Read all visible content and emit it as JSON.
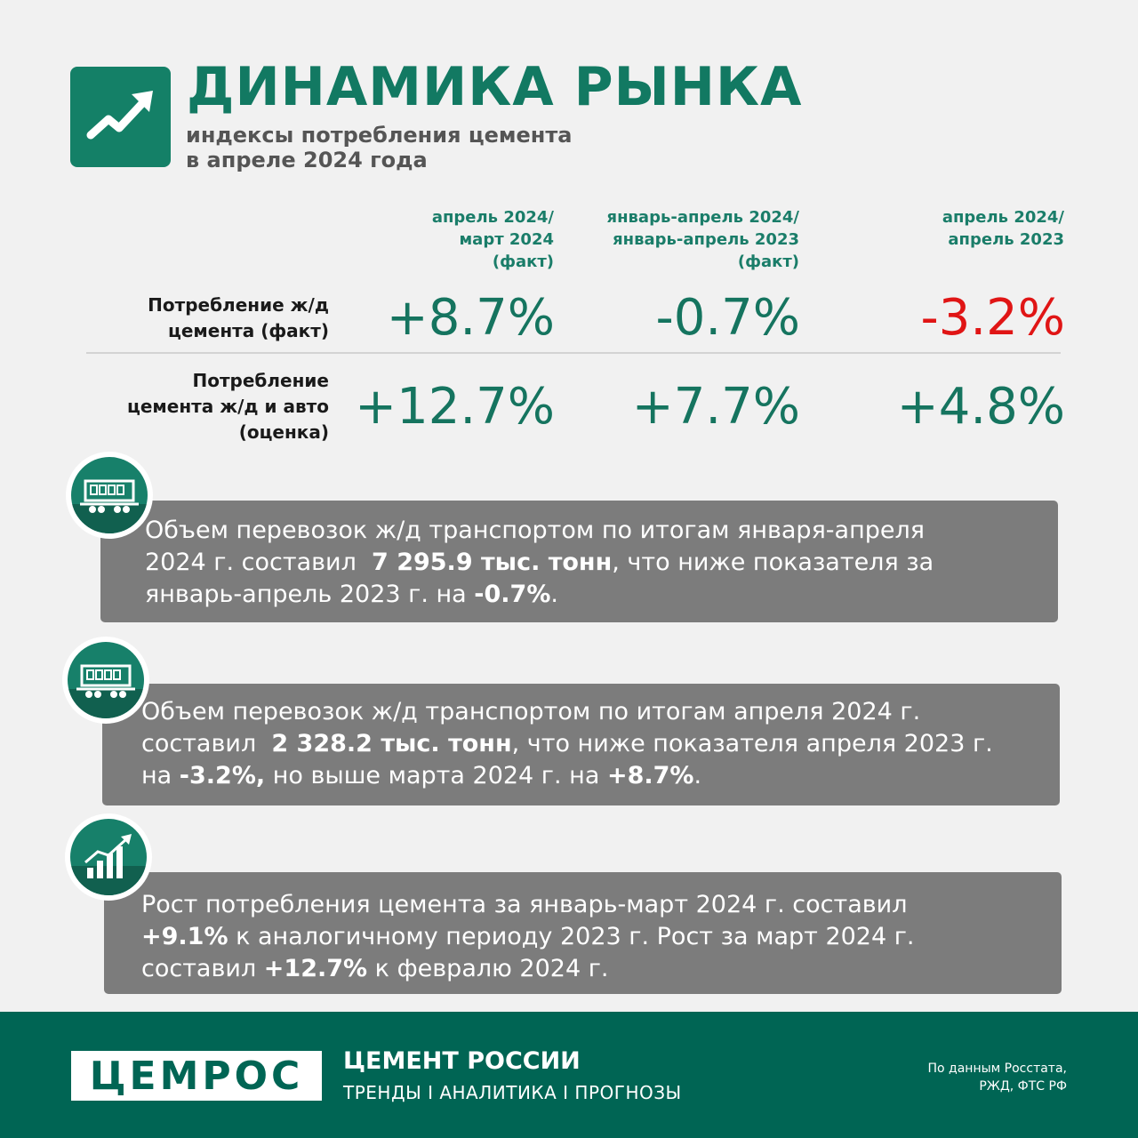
{
  "header": {
    "title": "ДИНАМИКА РЫНКА",
    "subtitle_line1": "индексы потребления цемента",
    "subtitle_line2": "в апреле 2024 года",
    "logo_icon": "trend-up-arrow-icon"
  },
  "table": {
    "columns": [
      {
        "lines": [
          "апрель 2024/",
          "март 2024",
          "(факт)"
        ]
      },
      {
        "lines": [
          "январь-апрель 2024/",
          "январь-апрель 2023",
          "(факт)"
        ]
      },
      {
        "lines": [
          "апрель 2024/",
          "апрель 2023"
        ]
      }
    ],
    "rows": [
      {
        "label_lines": [
          "Потребление ж/д",
          "цемента (факт)"
        ],
        "values": [
          "+8.7%",
          "-0.7%",
          "-3.2%"
        ]
      },
      {
        "label_lines": [
          "Потребление",
          "цемента ж/д и авто",
          "(оценка)"
        ],
        "values": [
          "+12.7%",
          "+7.7%",
          "+4.8%"
        ]
      }
    ],
    "colors": {
      "positive": "#15745f",
      "negative": "#e01515"
    }
  },
  "info": [
    {
      "icon": "railcar-icon",
      "segments": [
        {
          "text": "Объем перевозок ж/д транспортом по итогам января-апреля",
          "bold": false,
          "br": true
        },
        {
          "text": "2024 г. составил  ",
          "bold": false
        },
        {
          "text": "7 295.9 тыс. тонн",
          "bold": true
        },
        {
          "text": ", что ниже показателя за",
          "bold": false,
          "br": true
        },
        {
          "text": "январь-апрель 2023 г. на ",
          "bold": false
        },
        {
          "text": "-0.7%",
          "bold": true
        },
        {
          "text": ".",
          "bold": false
        }
      ]
    },
    {
      "icon": "railcar-icon",
      "segments": [
        {
          "text": "Объем перевозок ж/д транспортом по итогам апреля 2024 г.",
          "bold": false,
          "br": true
        },
        {
          "text": "составил  ",
          "bold": false
        },
        {
          "text": "2 328.2 тыс. тонн",
          "bold": true
        },
        {
          "text": ", что ниже показателя апреля 2023 г.",
          "bold": false,
          "br": true
        },
        {
          "text": "на ",
          "bold": false
        },
        {
          "text": "-3.2%,",
          "bold": true
        },
        {
          "text": " но выше марта 2024 г. на ",
          "bold": false
        },
        {
          "text": "+8.7%",
          "bold": true
        },
        {
          "text": ".",
          "bold": false
        }
      ]
    },
    {
      "icon": "growth-chart-icon",
      "segments": [
        {
          "text": "Рост потребления цемента за январь-март 2024 г. составил",
          "bold": false,
          "br": true
        },
        {
          "text": "+9.1%",
          "bold": true
        },
        {
          "text": " к аналогичному периоду 2023 г. Рост за март 2024 г.",
          "bold": false,
          "br": true
        },
        {
          "text": "составил ",
          "bold": false
        },
        {
          "text": "+12.7%",
          "bold": true
        },
        {
          "text": " к февралю 2024 г.",
          "bold": false
        }
      ]
    }
  ],
  "footer": {
    "brand": "ЦЕМРОС",
    "title": "ЦЕМЕНТ РОССИИ",
    "tagline": "ТРЕНДЫ І АНАЛИТИКА І ПРОГНОЗЫ",
    "source_line1": "По данным Росстата,",
    "source_line2": "РЖД, ФТС РФ",
    "background": "#006554"
  }
}
